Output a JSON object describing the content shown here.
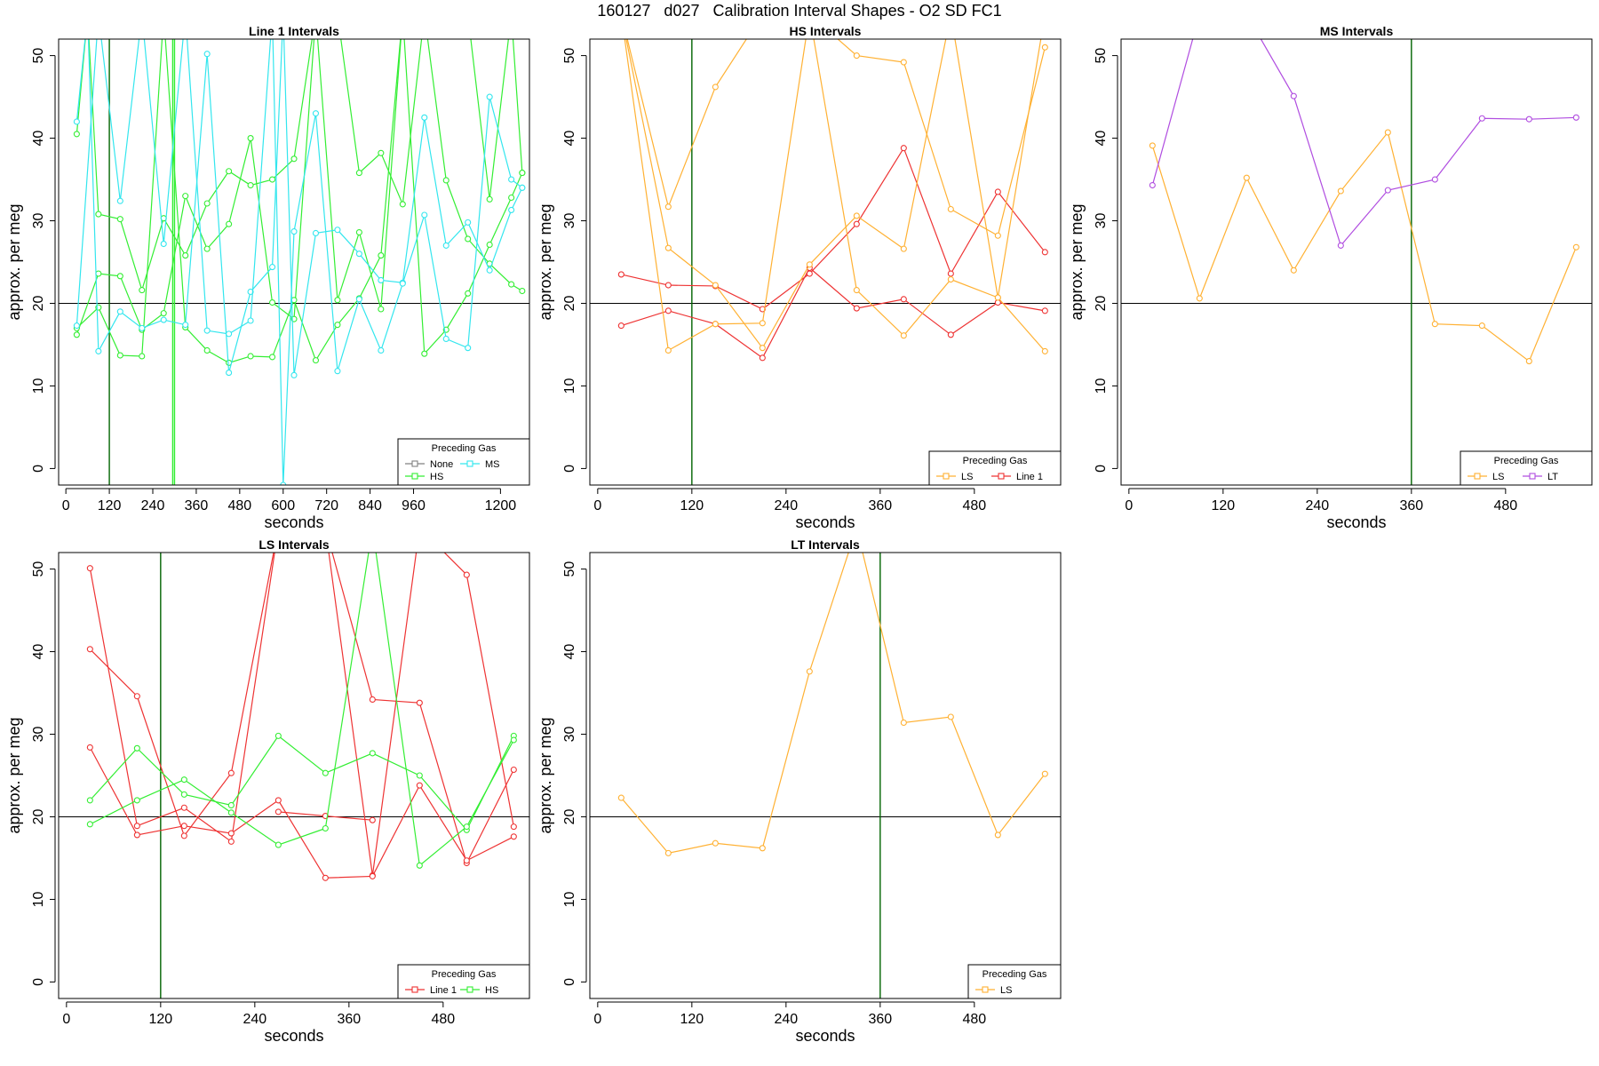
{
  "title": "160127   d027   Calibration Interval Shapes - O2 SD FC1",
  "colors": {
    "None": "#808080",
    "HS": "#33ee33",
    "MS": "#33e6ee",
    "LS": "#ffb133",
    "Line 1": "#ee3333",
    "LT": "#b04de0",
    "vline": "#006400",
    "refline": "#000000"
  },
  "chart_data": [
    {
      "id": "line1",
      "type": "line",
      "title": "Line 1 Intervals",
      "xlabel": "seconds",
      "ylabel": "approx. per meg",
      "xlim": [
        -20,
        1280
      ],
      "ylim": [
        -2,
        52
      ],
      "xticks": [
        0,
        120,
        240,
        360,
        480,
        600,
        720,
        840,
        960,
        1200
      ],
      "yticks": [
        0,
        10,
        20,
        30,
        40,
        50
      ],
      "hline": 20,
      "vlines": [
        {
          "x": 120,
          "color_key": "vline"
        },
        {
          "x": 295,
          "color_key": "HS"
        },
        {
          "x": 300,
          "color_key": "HS"
        }
      ],
      "legend": {
        "title": "Preceding Gas",
        "entries": [
          "None",
          "MS",
          "HS"
        ],
        "cols": 2
      },
      "series": [
        {
          "gas": "HS",
          "x": [
            30,
            60,
            90,
            150,
            210,
            270,
            330,
            390,
            450,
            510,
            570,
            630,
            690,
            750,
            810,
            870,
            930,
            990,
            1050,
            1110,
            1170,
            1230,
            1260
          ],
          "y": [
            40.5,
            55,
            30.8,
            30.2,
            21.6,
            30.3,
            25.8,
            32.1,
            36,
            34.3,
            35,
            37.5,
            55,
            55,
            35.8,
            38.2,
            32,
            55,
            34.9,
            27.8,
            24.8,
            22.3,
            21.5
          ]
        },
        {
          "gas": "HS",
          "x": [
            30,
            90,
            150,
            210,
            270,
            330,
            390,
            450,
            510,
            570,
            630,
            690,
            750,
            810,
            870,
            930,
            990,
            1050,
            1110,
            1170,
            1230,
            1260
          ],
          "y": [
            16.2,
            23.6,
            23.3,
            16.8,
            18.8,
            33,
            26.6,
            29.6,
            40,
            20.1,
            18.1,
            55,
            20.4,
            28.6,
            19.3,
            55,
            55,
            55,
            55,
            32.6,
            55,
            35.8
          ]
        },
        {
          "gas": "HS",
          "x": [
            30,
            90,
            150,
            210,
            270,
            330,
            390,
            450,
            510,
            570,
            630,
            690,
            750,
            810,
            870,
            930,
            990,
            1050,
            1110,
            1170,
            1230,
            1260
          ],
          "y": [
            17,
            19.5,
            13.7,
            13.6,
            55,
            17.1,
            14.3,
            12.8,
            13.6,
            13.5,
            20.4,
            13.1,
            17.4,
            20.6,
            25.8,
            55,
            13.9,
            16.8,
            21.2,
            27.1,
            32.8,
            35.8
          ]
        },
        {
          "gas": "MS",
          "x": [
            30,
            60,
            90,
            150,
            210,
            270,
            330,
            390,
            450,
            510,
            570,
            600,
            630,
            690,
            750,
            810,
            870,
            930,
            990,
            1050,
            1110,
            1170,
            1230,
            1260
          ],
          "y": [
            42,
            55,
            14.2,
            19,
            17,
            18,
            17.4,
            50.2,
            11.6,
            21.4,
            24.4,
            55,
            11.3,
            28.5,
            28.9,
            26,
            22.8,
            22.5,
            42.5,
            27,
            29.8,
            24,
            31.3,
            34
          ]
        },
        {
          "gas": "MS",
          "x": [
            30,
            90,
            150,
            210,
            270,
            330,
            390,
            450,
            510,
            570,
            600,
            630,
            690,
            750,
            810,
            870,
            930,
            990,
            1050,
            1110,
            1170,
            1230,
            1260
          ],
          "y": [
            17.3,
            55,
            32.4,
            55,
            27.2,
            55,
            16.7,
            16.3,
            17.9,
            55,
            -2,
            28.7,
            43,
            11.8,
            20.5,
            14.3,
            22.4,
            30.7,
            15.7,
            14.6,
            45,
            35,
            34
          ]
        }
      ]
    },
    {
      "id": "hs",
      "type": "line",
      "title": "HS Intervals",
      "xlabel": "seconds",
      "ylabel": "approx. per meg",
      "xlim": [
        -10,
        590
      ],
      "ylim": [
        -2,
        52
      ],
      "xticks": [
        0,
        120,
        240,
        360,
        480
      ],
      "yticks": [
        0,
        10,
        20,
        30,
        40,
        50
      ],
      "hline": 20,
      "vlines": [
        {
          "x": 120,
          "color_key": "vline"
        }
      ],
      "legend": {
        "title": "Preceding Gas",
        "entries": [
          "LS",
          "Line 1"
        ],
        "cols": 2
      },
      "series": [
        {
          "gas": "Line 1",
          "x": [
            30,
            90,
            150,
            210,
            270,
            330,
            390,
            450,
            510,
            570
          ],
          "y": [
            23.5,
            22.2,
            22.1,
            19.3,
            23.6,
            29.6,
            38.8,
            23.6,
            33.5,
            26.2
          ]
        },
        {
          "gas": "Line 1",
          "x": [
            30,
            90,
            150,
            210,
            270,
            330,
            390,
            450,
            510,
            570
          ],
          "y": [
            17.3,
            19.1,
            17.5,
            13.4,
            24.3,
            19.4,
            20.5,
            16.2,
            20.1,
            19.1
          ]
        },
        {
          "gas": "LS",
          "x": [
            30,
            90,
            150,
            210,
            270,
            330,
            390,
            450,
            510,
            570
          ],
          "y": [
            55,
            31.7,
            46.2,
            55,
            55,
            50,
            49.2,
            31.4,
            28.2,
            51
          ]
        },
        {
          "gas": "LS",
          "x": [
            30,
            90,
            150,
            210,
            270,
            330,
            390,
            450,
            510,
            570
          ],
          "y": [
            55,
            26.7,
            22.2,
            14.6,
            24.7,
            30.6,
            26.6,
            55,
            20.7,
            55
          ]
        },
        {
          "gas": "LS",
          "x": [
            30,
            90,
            150,
            210,
            270,
            330,
            390,
            450,
            510,
            570
          ],
          "y": [
            55,
            14.3,
            17.5,
            17.6,
            55,
            21.6,
            16.1,
            22.9,
            20.7,
            14.2
          ]
        }
      ]
    },
    {
      "id": "ms",
      "type": "line",
      "title": "MS Intervals",
      "xlabel": "seconds",
      "ylabel": "approx. per meg",
      "xlim": [
        -10,
        590
      ],
      "ylim": [
        -2,
        52
      ],
      "xticks": [
        0,
        120,
        240,
        360,
        480
      ],
      "yticks": [
        0,
        10,
        20,
        30,
        40,
        50
      ],
      "hline": 20,
      "vlines": [
        {
          "x": 360,
          "color_key": "vline"
        }
      ],
      "legend": {
        "title": "Preceding Gas",
        "entries": [
          "LS",
          "LT"
        ],
        "cols": 2
      },
      "series": [
        {
          "gas": "LS",
          "x": [
            30,
            90,
            150,
            210,
            270,
            330,
            390,
            450,
            510,
            570
          ],
          "y": [
            39.1,
            20.6,
            35.2,
            24,
            33.6,
            40.7,
            17.5,
            17.3,
            13,
            26.8
          ]
        },
        {
          "gas": "LT",
          "x": [
            30,
            90,
            150,
            210,
            270,
            330,
            390,
            450,
            510,
            570
          ],
          "y": [
            34.3,
            55,
            55,
            45.1,
            27,
            33.7,
            35,
            42.4,
            42.3,
            42.5
          ]
        }
      ]
    },
    {
      "id": "ls",
      "type": "line",
      "title": "LS Intervals",
      "xlabel": "seconds",
      "ylabel": "approx. per meg",
      "xlim": [
        -10,
        590
      ],
      "ylim": [
        -2,
        52
      ],
      "xticks": [
        0,
        120,
        240,
        360,
        480
      ],
      "yticks": [
        0,
        10,
        20,
        30,
        40,
        50
      ],
      "hline": 20,
      "vlines": [
        {
          "x": 120,
          "color_key": "vline"
        }
      ],
      "legend": {
        "title": "Preceding Gas",
        "entries": [
          "Line 1",
          "HS"
        ],
        "cols": 2
      },
      "series": [
        {
          "gas": "Line 1",
          "x": [
            30,
            90,
            150,
            210,
            270,
            330,
            390,
            450,
            510,
            570
          ],
          "y": [
            50.1,
            18.9,
            21.1,
            17,
            55,
            55,
            34.2,
            33.8,
            14.4,
            25.7
          ]
        },
        {
          "gas": "Line 1",
          "x": [
            30,
            90,
            150,
            210,
            270,
            330,
            390,
            450,
            510,
            570
          ],
          "y": [
            40.3,
            34.6,
            17.7,
            25.3,
            55,
            55,
            12.9,
            55,
            49.3,
            18.8
          ]
        },
        {
          "gas": "Line 1",
          "x": [
            30,
            90,
            150,
            210,
            270,
            330,
            390,
            450,
            510,
            570
          ],
          "y": [
            28.4,
            17.8,
            18.9,
            18,
            22,
            12.6,
            12.8,
            23.8,
            14.7,
            17.6
          ]
        },
        {
          "gas": "Line 1",
          "x": [
            270,
            330,
            390
          ],
          "y": [
            20.6,
            20.1,
            19.6
          ]
        },
        {
          "gas": "HS",
          "x": [
            30,
            90,
            150,
            210,
            270,
            330,
            390,
            450,
            510,
            570
          ],
          "y": [
            22,
            28.3,
            22.7,
            21.4,
            29.8,
            25.3,
            27.7,
            25,
            18.4,
            29.8
          ]
        },
        {
          "gas": "HS",
          "x": [
            30,
            90,
            150,
            210,
            270,
            330,
            390,
            450,
            510,
            570
          ],
          "y": [
            19.1,
            22,
            24.5,
            20.5,
            16.6,
            18.6,
            55,
            14.1,
            18.8,
            29.3
          ]
        }
      ]
    },
    {
      "id": "lt",
      "type": "line",
      "title": "LT Intervals",
      "xlabel": "seconds",
      "ylabel": "approx. per meg",
      "xlim": [
        -10,
        590
      ],
      "ylim": [
        -2,
        52
      ],
      "xticks": [
        0,
        120,
        240,
        360,
        480
      ],
      "yticks": [
        0,
        10,
        20,
        30,
        40,
        50
      ],
      "hline": 20,
      "vlines": [
        {
          "x": 360,
          "color_key": "vline"
        }
      ],
      "legend": {
        "title": "Preceding Gas",
        "entries": [
          "LS"
        ],
        "cols": 1
      },
      "series": [
        {
          "gas": "LS",
          "x": [
            30,
            90,
            150,
            210,
            270,
            330,
            390,
            450,
            510,
            570
          ],
          "y": [
            22.3,
            15.6,
            16.8,
            16.2,
            37.6,
            55,
            31.4,
            32.1,
            17.8,
            25.2
          ]
        }
      ]
    }
  ]
}
